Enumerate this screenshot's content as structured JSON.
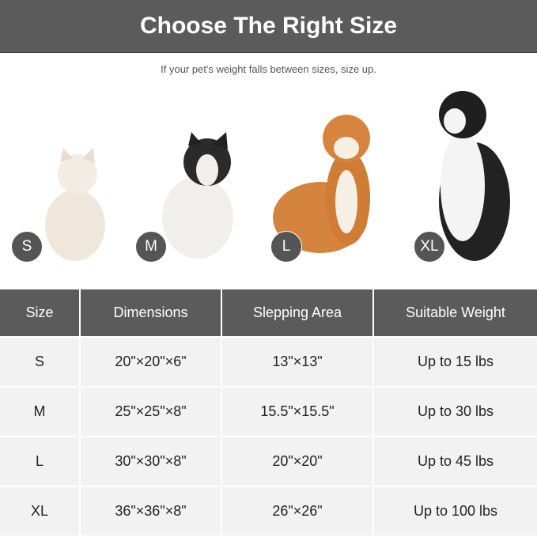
{
  "title": "Choose The Right Size",
  "subtitle": "If your pet's weight falls between sizes, size up.",
  "pets": [
    {
      "badge": "S",
      "animal": "white kitten"
    },
    {
      "badge": "M",
      "animal": "french bulldog"
    },
    {
      "badge": "L",
      "animal": "shiba inu"
    },
    {
      "badge": "XL",
      "animal": "border collie"
    }
  ],
  "table": {
    "headers": [
      "Size",
      "Dimensions",
      "Slepping Area",
      "Suitable Weight"
    ],
    "rows": [
      [
        "S",
        "20\"×20\"×6\"",
        "13\"×13\"",
        "Up to 15 lbs"
      ],
      [
        "M",
        "25\"×25\"×8\"",
        "15.5\"×15.5\"",
        "Up to 30 lbs"
      ],
      [
        "L",
        "30\"×30\"×8\"",
        "20\"×20\"",
        "Up to 45 lbs"
      ],
      [
        "XL",
        "36\"×36\"×8\"",
        "26\"×26\"",
        "Up to 100 lbs"
      ]
    ]
  },
  "colors": {
    "header": "#5b5b5b",
    "row": "#f2f2f2",
    "badge": "#555555"
  }
}
